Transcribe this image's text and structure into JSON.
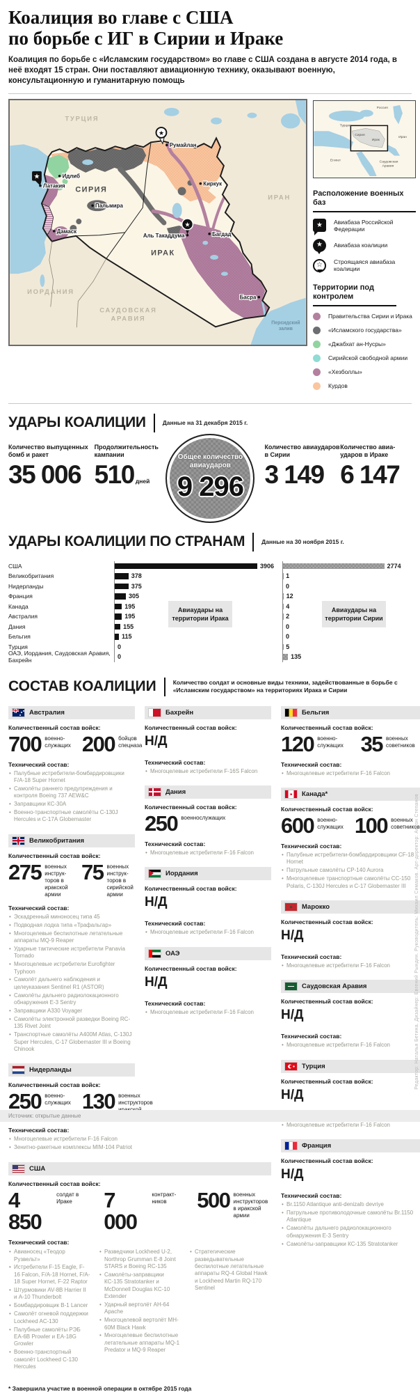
{
  "header": {
    "title_line1": "Коалиция во главе с США",
    "title_line2": "по борьбе с ИГ в Сирии и Ираке",
    "subtitle": "Коалиция по борьбе с «Исламским государством» во главе с США создана в августе 2014 года, в неё входят 15 стран. Они поставляют авиационную технику, оказывают военную, консультационную и гуманитарную помощь"
  },
  "map": {
    "cities": {
      "rumailan": "Румайлан",
      "idlib": "Идлиб",
      "latakia": "Латакия",
      "palmyra": "Пальмира",
      "damascus": "Дамаск",
      "kirkuk": "Киркук",
      "taqaddum": "Аль Такаддума",
      "baghdad": "Багдад",
      "basra": "Басра"
    },
    "countries": {
      "turkey": "ТУРЦИЯ",
      "syria": "СИРИЯ",
      "iraq": "ИРАК",
      "iran": "ИРАН",
      "jordan": "ИОРДАНИЯ",
      "saudi1": "САУДОВСКАЯ",
      "saudi2": "АРАВИЯ",
      "gulf1": "Персидский",
      "gulf2": "залив"
    },
    "inset": {
      "russia": "Россия",
      "turkey": "Турция",
      "syria": "Сирия",
      "iraq": "Ирак",
      "iran": "Иран",
      "egypt": "Египет",
      "saudi1": "Саудовская",
      "saudi2": "Аравия"
    }
  },
  "legend": {
    "bases_title": "Расположение военных баз",
    "bases": [
      {
        "icon": "russian-base",
        "label": "Авиабаза Российской Федерации"
      },
      {
        "icon": "coalition-base",
        "label": "Авиабаза коалиции"
      },
      {
        "icon": "coalition-base-under-construction",
        "label": "Строящаяся авиабаза коалиции"
      }
    ],
    "territories_title": "Территории под контролем",
    "territories": [
      {
        "label": "Правительства Сирии и Ирака",
        "color": "#b3809f"
      },
      {
        "label": "«Исламского государства»",
        "color": "#6d6e71"
      },
      {
        "label": "«Джабхат ан-Нусры»",
        "color": "#92d3a2"
      },
      {
        "label": "Сирийской свободной армии",
        "color": "#90dcd4"
      },
      {
        "label": "«Хезболлы»",
        "color": "#b57f9f"
      },
      {
        "label": "Курдов",
        "color": "#f9c6a0"
      }
    ]
  },
  "strikes": {
    "title": "УДАРЫ КОАЛИЦИИ",
    "date_note": "Данные на 31 декабря 2015 г.",
    "stats": [
      {
        "label": "Количество выпущенных бомб и ракет",
        "value": "35 006",
        "unit": ""
      },
      {
        "label": "Продолжительность кампании",
        "value": "510",
        "unit": "дней"
      },
      {
        "label": "Количество авиа­ударов в Сирии",
        "value": "3 149",
        "unit": ""
      },
      {
        "label": "Количество авиа­ударов в Ираке",
        "value": "6 147",
        "unit": ""
      }
    ],
    "total": {
      "label": "Общее количество авиаударов",
      "value": "9 296"
    }
  },
  "chart_data": {
    "type": "bar",
    "title": "УДАРЫ КОАЛИЦИИ ПО СТРАНАМ",
    "date_note": "Данные на 30 ноября 2015 г.",
    "categories": [
      "США",
      "Великобритания",
      "Нидерланды",
      "Франция",
      "Канада",
      "Австралия",
      "Дания",
      "Бельгия",
      "Турция",
      "ОАЭ, Иордания, Саудовская Аравия, Бахрейн"
    ],
    "series": [
      {
        "name": "Авиаудары на территории Ирака",
        "values": [
          3906,
          378,
          375,
          305,
          195,
          195,
          155,
          115,
          0,
          0
        ],
        "color": "#111111"
      },
      {
        "name": "Авиаудары на территории Сирии",
        "values": [
          2774,
          1,
          0,
          12,
          4,
          2,
          0,
          0,
          5,
          135
        ],
        "color": "#9c9c9c"
      }
    ],
    "xlim": [
      0,
      3906
    ],
    "grid": false,
    "legend_position": "inline-boxes"
  },
  "coalition": {
    "title": "СОСТАВ КОАЛИЦИИ",
    "subtitle": "Количество солдат и основные виды техники, задействованные в борьбе с «Исламским государством» на территориях Ирака и Сирии",
    "labels": {
      "troops": "Количественный состав войск:",
      "tech": "Технический состав:",
      "na": "Н/Д"
    },
    "cards": [
      {
        "id": "australia",
        "flag": "au",
        "column": "A",
        "name": "Австралия",
        "troops": [
          {
            "value": "700",
            "desc": "военно­служащих"
          },
          {
            "value": "200",
            "desc": "бойцов спецназа"
          }
        ],
        "tech": [
          "Палубные истребители-бомбардировщики F/A-18 Super Hornet",
          "Самолёты раннего предупреждения и контроля Boeing 737 AEW&C",
          "Заправщики КС-30А",
          "Военно-транспортные самолёты C-130J Hercules и С-17А Globemaster"
        ]
      },
      {
        "id": "bahrain",
        "flag": "bh",
        "column": "B",
        "name": "Бахрейн",
        "troops_na": true,
        "tech": [
          "Многоцелевые истребители F-16S Falcon"
        ]
      },
      {
        "id": "belgium",
        "flag": "be",
        "column": "C",
        "name": "Бельгия",
        "troops": [
          {
            "value": "120",
            "desc": "военно­служащих"
          },
          {
            "value": "35",
            "desc": "военных советников"
          }
        ],
        "tech": [
          "Многоцелевые истребители F-16 Falcon"
        ]
      },
      {
        "id": "uk",
        "flag": "gb",
        "column": "A",
        "name": "Великобритания",
        "troops": [
          {
            "value": "275",
            "desc": "военных инструк­торов в иракской армии"
          },
          {
            "value": "75",
            "desc": "военных инструк­торов в сирийской армии"
          }
        ],
        "tech": [
          "Эскадренный миноносец типа 45",
          "Подводная лодка типа «Трафальгар»",
          "Многоцелевые беспилотные летательные аппараты MQ-9 Reaper",
          "Ударные тактические истребители Panavia Tornado",
          "Многоцелевые истребители Eurofighter Typhoon",
          "Самолёт дальнего наблюдения и целеуказания Sentinel R1 (ASTOR)",
          "Самолёты дальнего радиолокационного обнаружения E-3 Sentry",
          "Заправщики A330 Voyager",
          "Самолёты электронной разведки Boeing RC-135 Rivet Joint",
          "Транспортные самолёты A400M Atlas, C-130J Super Hercules, C-17 Globemaster III и Boeing Chinook"
        ]
      },
      {
        "id": "denmark",
        "flag": "dk",
        "column": "B",
        "name": "Дания",
        "troops": [
          {
            "value": "250",
            "desc": "военно­служащих"
          }
        ],
        "tech": [
          "Многоцелевые истребители F-16 Falcon"
        ]
      },
      {
        "id": "canada",
        "flag": "ca",
        "column": "C",
        "name": "Канада*",
        "troops": [
          {
            "value": "600",
            "desc": "военно­служащих"
          },
          {
            "value": "100",
            "desc": "военных советников"
          }
        ],
        "tech": [
          "Палубные истребители-бомбардировщики CF-18 Hornet",
          "Патрульные самолёты CP-140 Aurora",
          "Многоцелевые транспортные самолёты CC-150 Polaris, C-130J Hercules и C-17 Globemaster III"
        ]
      },
      {
        "id": "netherlands",
        "flag": "nl",
        "column": "A",
        "name": "Нидерланды",
        "troops": [
          {
            "value": "250",
            "desc": "военно­служащих"
          },
          {
            "value": "130",
            "desc": "военных инструкторов иракской армии"
          }
        ],
        "tech": [
          "Многоцелевые истребители F-16 Falcon",
          "Зенитно-ракетные комплексы MIM-104 Patriot"
        ]
      },
      {
        "id": "jordan",
        "flag": "jo",
        "column": "B",
        "name": "Иордания",
        "troops_na": true,
        "tech": [
          "Многоцелевые истребители F-16 Falcon"
        ]
      },
      {
        "id": "morocco",
        "flag": "ma",
        "column": "C",
        "name": "Марокко",
        "troops_na": true,
        "tech": [
          "Многоцелевые истребители F-16 Falcon"
        ]
      },
      {
        "id": "uae",
        "flag": "ae",
        "column": "B",
        "name": "ОАЭ",
        "troops_na": true,
        "tech": [
          "Многоцелевые истребители F-16 Falcon"
        ]
      },
      {
        "id": "saudi",
        "flag": "sa",
        "column": "C",
        "name": "Саудовская Аравия",
        "troops_na": true,
        "tech": [
          "Многоцелевые истребители F-16 Falcon"
        ]
      },
      {
        "id": "usa",
        "flag": "us",
        "column": "wide",
        "name": "США",
        "troops": [
          {
            "value": "4 850",
            "desc": "солдат в Ираке"
          },
          {
            "value": "7 000",
            "desc": "контракт­ников"
          },
          {
            "value": "500",
            "desc": "военных инструк­торов в иракской армии"
          }
        ],
        "tech_columns": [
          [
            "Авианосец «Теодор Рузвельт»",
            "Истребители F-15 Eagle, F-16 Falcon, F/A-18 Hornet, F/A-18 Super Hornet, F-22 Raptor",
            "Штурмовики AV-8B Harrier II и A-10 Thunderbolt",
            "Бомбардировщик B-1 Lancer",
            "Самолёт огневой поддержки Lockheed AC-130",
            "Палубные самолёты РЭБ EA-6B Prowler и EA-18G Growler",
            "Военно-транспортный самолёт Lockheed C-130 Hercules"
          ],
          [
            "Разведчики Lockheed U-2, Northrop Grumman E-8 Joint STARS и Boeing RC-135",
            "Самолёты-заправщики КС-135 Stratotanker и McDonnell Douglas KC-10 Extender",
            "Ударный вертолёт AH-64 Apache",
            "Многоцелевой вертолёт MH-60M Black Hawk",
            "Многоцелевые беспилотные летательные аппараты MQ-1 Predator и MQ-9 Reaper"
          ],
          [
            "Стратегические разведывательные беспилотные летательные аппараты RQ-4 Global Hawk и Lockheed Martin RQ-170 Sentinel"
          ]
        ]
      },
      {
        "id": "turkey",
        "flag": "tr",
        "column": "C",
        "name": "Турция",
        "troops_na": true,
        "tech": [
          "Многоцелевые истребители F-16 Falcon"
        ]
      },
      {
        "id": "france",
        "flag": "fr",
        "column": "C",
        "name": "Франция",
        "troops_na": true,
        "tech": [
          "Br.1150 Atlantique anti-denizaltı devriye",
          "Патрульные противолодочные самолёты Br.1150 Atlantique",
          "Самолёты дальнего радиолокационного обнаружения E-3 Sentry",
          "Самолёты-заправщики КС-135 Stratotanker"
        ]
      }
    ],
    "footnote": "* Завершила участие в военной операции в октябре 2015 года"
  },
  "footer": {
    "source": "Источник: открытые данные",
    "credits": "Редактор: Наталья Бетина. Дизайнер: Евгений Рындин. Руководитель: Михаил Симаков. Арт-директор: Антон Степанов"
  }
}
